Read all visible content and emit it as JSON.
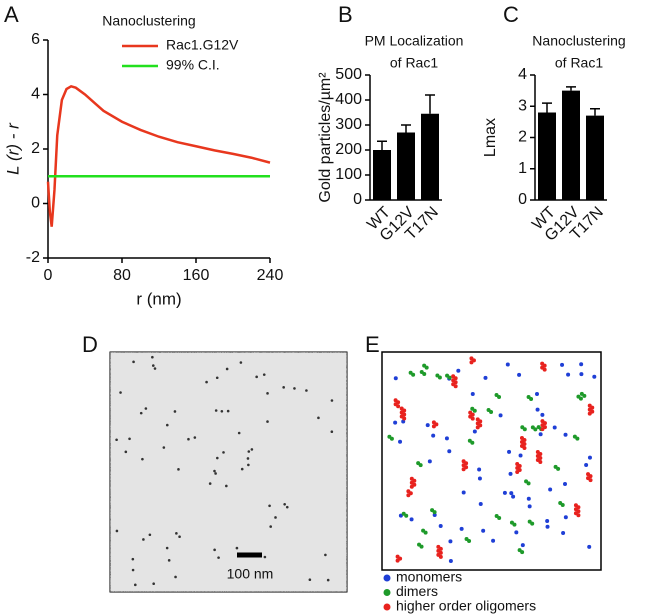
{
  "chart_data": [
    {
      "type": "line",
      "panel": "A",
      "title": "Nanoclustering",
      "xlabel": "r (nm)",
      "ylabel": "L (r) - r",
      "x": [
        0,
        2,
        4,
        7,
        10,
        15,
        20,
        25,
        30,
        40,
        50,
        60,
        80,
        100,
        120,
        140,
        160,
        180,
        200,
        220,
        240
      ],
      "series": [
        {
          "name": "Rac1.G12V",
          "color": "#e8371e",
          "values": [
            0.8,
            -0.3,
            -0.85,
            0.5,
            2.5,
            3.8,
            4.2,
            4.3,
            4.25,
            4.0,
            3.7,
            3.4,
            3.0,
            2.7,
            2.45,
            2.25,
            2.1,
            1.95,
            1.82,
            1.68,
            1.5
          ]
        },
        {
          "name": "99% C.I.",
          "color": "#22e01e",
          "values": [
            1,
            1,
            1,
            1,
            1,
            1,
            1,
            1,
            1,
            1,
            1,
            1,
            1,
            1,
            1,
            1,
            1,
            1,
            1,
            1,
            1
          ]
        }
      ],
      "xlim": [
        0,
        240
      ],
      "xticks": [
        0,
        80,
        160,
        240
      ],
      "ylim": [
        -2,
        6
      ],
      "yticks": [
        -2,
        0,
        2,
        4,
        6
      ],
      "legend": "upper right"
    },
    {
      "type": "bar",
      "panel": "B",
      "title": [
        "PM Localization",
        "of Rac1"
      ],
      "ylabel": "Gold particles/µm²",
      "categories": [
        "WT",
        "G12V",
        "T17N"
      ],
      "values": [
        200,
        270,
        345
      ],
      "errors": [
        35,
        30,
        75
      ],
      "color": "#000000",
      "ylim": [
        0,
        500
      ],
      "yticks": [
        0,
        100,
        200,
        300,
        400,
        500
      ]
    },
    {
      "type": "bar",
      "panel": "C",
      "title": [
        "Nanoclustering",
        "of Rac1"
      ],
      "ylabel": "Lmax",
      "categories": [
        "WT",
        "G12V",
        "T17N"
      ],
      "values": [
        2.8,
        3.5,
        2.7
      ],
      "errors": [
        0.3,
        0.12,
        0.22
      ],
      "color": "#000000",
      "ylim": [
        0,
        4
      ],
      "yticks": [
        0,
        1,
        2,
        3,
        4
      ]
    },
    {
      "type": "image",
      "panel": "D",
      "scale_label": "100 nm"
    },
    {
      "type": "points",
      "panel": "E",
      "legend": [
        {
          "name": "monomers",
          "color": "#1f3fd6"
        },
        {
          "name": "dimers",
          "color": "#1e9a2a"
        },
        {
          "name": "higher order oligomers",
          "color": "#e8221e"
        }
      ]
    }
  ]
}
